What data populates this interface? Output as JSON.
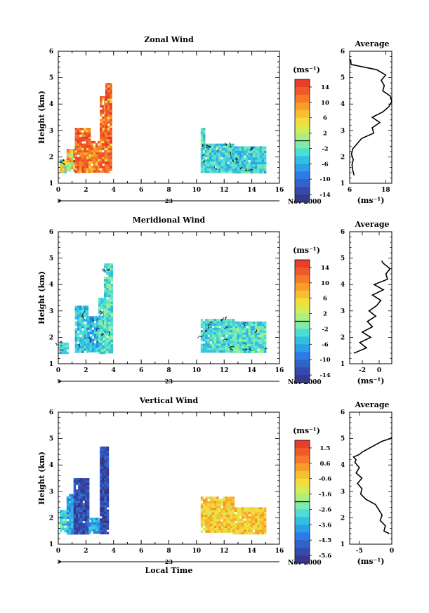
{
  "chart_data": [
    {
      "type": "heatmap",
      "title": "Zonal Wind",
      "ylabel": "Height (km)",
      "xlim": [
        0,
        16
      ],
      "ylim": [
        1,
        6
      ],
      "xticks": [
        "0",
        "2",
        "4",
        "6",
        "8",
        "10",
        "12",
        "14",
        "16"
      ],
      "yticks": [
        "1",
        "2",
        "3",
        "4",
        "5",
        "6"
      ],
      "date_label": "Nov 2000",
      "day_label": "23",
      "colorbar": {
        "unit": "(ms⁻¹)",
        "ticks": [
          "14",
          "10",
          "6",
          "2",
          "-2",
          "-6",
          "-10",
          "-14"
        ],
        "range": [
          -16,
          16
        ]
      },
      "blocks": [
        {
          "x": [
            0.1,
            0.5
          ],
          "top": 1.9,
          "level": 0.55,
          "texture": "mixed"
        },
        {
          "x": [
            0.6,
            1.2
          ],
          "top": 2.3,
          "level": 0.7,
          "texture": "mixed"
        },
        {
          "x": [
            1.2,
            2.2
          ],
          "top": 3.1,
          "level": 0.88,
          "texture": "warm"
        },
        {
          "x": [
            2.2,
            3.0
          ],
          "top": 2.6,
          "level": 0.85,
          "texture": "warm"
        },
        {
          "x": [
            3.0,
            3.4
          ],
          "top": 4.3,
          "level": 0.88,
          "texture": "warm"
        },
        {
          "x": [
            3.4,
            3.8
          ],
          "top": 4.8,
          "level": 0.9,
          "texture": "warm"
        },
        {
          "x": [
            10.3,
            10.6
          ],
          "top": 3.1,
          "level": 0.4,
          "texture": "cool"
        },
        {
          "x": [
            10.6,
            12.6
          ],
          "top": 2.5,
          "level": 0.38,
          "texture": "cool"
        },
        {
          "x": [
            12.6,
            15.0
          ],
          "top": 2.4,
          "level": 0.38,
          "texture": "cool"
        }
      ],
      "average": {
        "title": "Average",
        "xlabel": "(ms⁻¹)",
        "xlim": [
          6,
          20
        ],
        "xticks": [
          "6",
          "18"
        ],
        "yticks": [
          "1",
          "2",
          "3",
          "4",
          "5",
          "6"
        ],
        "x": [
          7.5,
          7.0,
          6.8,
          7.2,
          6.6,
          7.0,
          8.5,
          10.0,
          14.0,
          13.5,
          16.0,
          13.5,
          17.0,
          19.0,
          20.0,
          19.5,
          17.0,
          17.5,
          16.5,
          18.0,
          15.0,
          6.5,
          6.3
        ],
        "y": [
          1.3,
          1.5,
          1.7,
          1.9,
          2.1,
          2.3,
          2.5,
          2.7,
          2.9,
          3.1,
          3.3,
          3.5,
          3.7,
          3.9,
          4.1,
          4.3,
          4.5,
          4.7,
          4.9,
          5.1,
          5.3,
          5.5,
          5.7
        ]
      }
    },
    {
      "type": "heatmap",
      "title": "Meridional Wind",
      "ylabel": "Height (km)",
      "xlim": [
        0,
        16
      ],
      "ylim": [
        1,
        6
      ],
      "xticks": [
        "0",
        "2",
        "4",
        "6",
        "8",
        "10",
        "12",
        "14",
        "16"
      ],
      "yticks": [
        "1",
        "2",
        "3",
        "4",
        "5",
        "6"
      ],
      "date_label": "Nov 2000",
      "day_label": "23",
      "colorbar": {
        "unit": "(ms⁻¹)",
        "ticks": [
          "14",
          "10",
          "6",
          "2",
          "-2",
          "-6",
          "-10",
          "-14"
        ],
        "range": [
          -16,
          16
        ]
      },
      "blocks": [
        {
          "x": [
            0.1,
            0.6
          ],
          "top": 1.8,
          "level": 0.4,
          "texture": "cool"
        },
        {
          "x": [
            1.2,
            2.1
          ],
          "top": 3.2,
          "level": 0.35,
          "texture": "cool"
        },
        {
          "x": [
            2.1,
            2.9
          ],
          "top": 2.8,
          "level": 0.32,
          "texture": "cool"
        },
        {
          "x": [
            2.9,
            3.3
          ],
          "top": 3.5,
          "level": 0.4,
          "texture": "cool"
        },
        {
          "x": [
            3.3,
            3.8
          ],
          "top": 4.8,
          "level": 0.42,
          "texture": "cool"
        },
        {
          "x": [
            10.3,
            12.6
          ],
          "top": 2.7,
          "level": 0.4,
          "texture": "cool"
        },
        {
          "x": [
            12.6,
            15.0
          ],
          "top": 2.6,
          "level": 0.42,
          "texture": "cool"
        }
      ],
      "average": {
        "title": "Average",
        "xlabel": "(ms⁻¹)",
        "xlim": [
          -3.5,
          1.5
        ],
        "xticks": [
          "-2",
          "0"
        ],
        "yticks": [
          "1",
          "2",
          "3",
          "4",
          "5",
          "6"
        ],
        "x": [
          -3.0,
          -1.5,
          -2.3,
          -1.0,
          -2.0,
          -0.8,
          -1.4,
          -0.4,
          -1.2,
          -0.3,
          0.2,
          -0.8,
          0.5,
          -0.6,
          1.0,
          0.8,
          1.3,
          0.5,
          0.3
        ],
        "y": [
          1.4,
          1.6,
          1.8,
          2.0,
          2.2,
          2.4,
          2.6,
          2.8,
          3.0,
          3.2,
          3.4,
          3.6,
          3.8,
          4.0,
          4.2,
          4.4,
          4.6,
          4.8,
          4.9
        ]
      }
    },
    {
      "type": "heatmap",
      "title": "Vertical Wind",
      "ylabel": "Height (km)",
      "xlabel": "Local Time",
      "xlim": [
        0,
        16
      ],
      "ylim": [
        1,
        6
      ],
      "xticks": [
        "0",
        "2",
        "4",
        "6",
        "8",
        "10",
        "12",
        "14",
        "16"
      ],
      "yticks": [
        "1",
        "2",
        "3",
        "4",
        "5",
        "6"
      ],
      "date_label": "Nov 2000",
      "day_label": "23",
      "colorbar": {
        "unit": "(ms⁻¹)",
        "ticks": [
          "1.5",
          "0.6",
          "-0.6",
          "-1.6",
          "-2.6",
          "-3.6",
          "-4.5",
          "-5.6"
        ],
        "range": [
          -6.5,
          2.0
        ]
      },
      "blocks": [
        {
          "x": [
            0.1,
            0.6
          ],
          "top": 2.3,
          "level": 0.4,
          "texture": "cool"
        },
        {
          "x": [
            0.6,
            1.1
          ],
          "top": 2.9,
          "level": 0.3,
          "texture": "cool"
        },
        {
          "x": [
            1.1,
            2.2
          ],
          "top": 3.5,
          "level": 0.1,
          "texture": "cool"
        },
        {
          "x": [
            2.2,
            3.0
          ],
          "top": 2.0,
          "level": 0.3,
          "texture": "cool"
        },
        {
          "x": [
            3.0,
            3.6
          ],
          "top": 4.7,
          "level": 0.08,
          "texture": "cool"
        },
        {
          "x": [
            10.3,
            12.6
          ],
          "top": 2.8,
          "level": 0.7,
          "texture": "warm"
        },
        {
          "x": [
            12.6,
            15.0
          ],
          "top": 2.4,
          "level": 0.7,
          "texture": "warm"
        }
      ],
      "average": {
        "title": "Average",
        "xlabel": "(ms⁻¹)",
        "xlim": [
          -6.5,
          0
        ],
        "xticks": [
          "-5",
          "0"
        ],
        "yticks": [
          "1",
          "2",
          "3",
          "4",
          "5",
          "6"
        ],
        "x": [
          -0.4,
          -1.2,
          -1.0,
          -1.8,
          -1.5,
          -2.0,
          -2.5,
          -4.0,
          -4.8,
          -4.6,
          -5.3,
          -4.6,
          -5.5,
          -5.0,
          -5.7,
          -5.5,
          -5.9,
          -5.0,
          -4.5,
          -3.0,
          -1.5,
          -0.2,
          0.0
        ],
        "y": [
          1.4,
          1.5,
          1.7,
          1.9,
          2.1,
          2.3,
          2.5,
          2.7,
          2.9,
          3.1,
          3.3,
          3.5,
          3.7,
          3.9,
          4.1,
          4.2,
          4.3,
          4.4,
          4.5,
          4.7,
          4.9,
          5.0,
          5.05
        ]
      }
    }
  ]
}
